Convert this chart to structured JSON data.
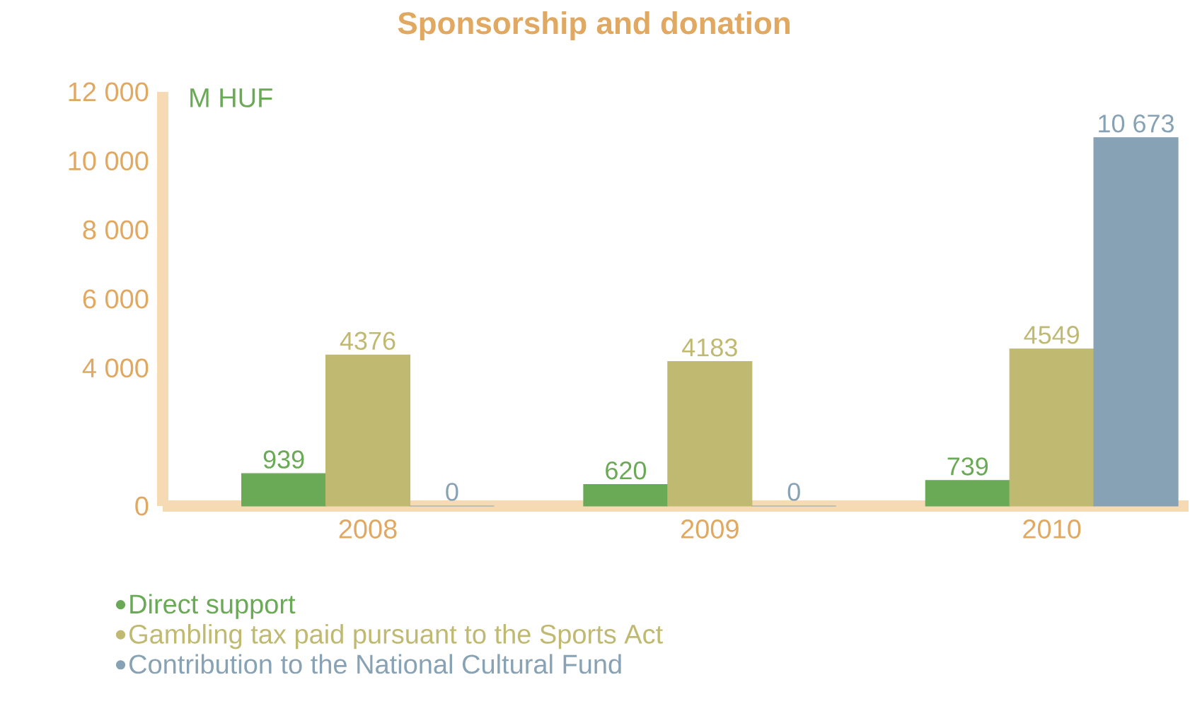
{
  "chart_data": {
    "type": "bar",
    "title": "Sponsorship and donation",
    "ylabel": "M HUF",
    "categories": [
      "2008",
      "2009",
      "2010"
    ],
    "series": [
      {
        "name": "Direct support",
        "color": "#6aa956",
        "values": [
          939,
          620,
          739
        ],
        "value_labels": [
          "939",
          "620",
          "739"
        ]
      },
      {
        "name": "Gambling tax paid pursuant to the Sports Act",
        "color": "#bfb972",
        "values": [
          4376,
          4183,
          4549
        ],
        "value_labels": [
          "4376",
          "4183",
          "4549"
        ]
      },
      {
        "name": "Contribution to the National Cultural Fund",
        "color": "#87a2b4",
        "values": [
          0,
          0,
          10673
        ],
        "value_labels": [
          "0",
          "0",
          "10 673"
        ]
      }
    ],
    "ylim": [
      0,
      12000
    ],
    "yticks": [
      0,
      {
        "value": 4000,
        "label": "4 000"
      },
      {
        "value": 6000,
        "label": "6 000"
      },
      {
        "value": 8000,
        "label": "8 000"
      },
      {
        "value": 10000,
        "label": "10 000"
      },
      {
        "value": 12000,
        "label": "12 000"
      }
    ],
    "grid": false,
    "legend": "bottom"
  }
}
